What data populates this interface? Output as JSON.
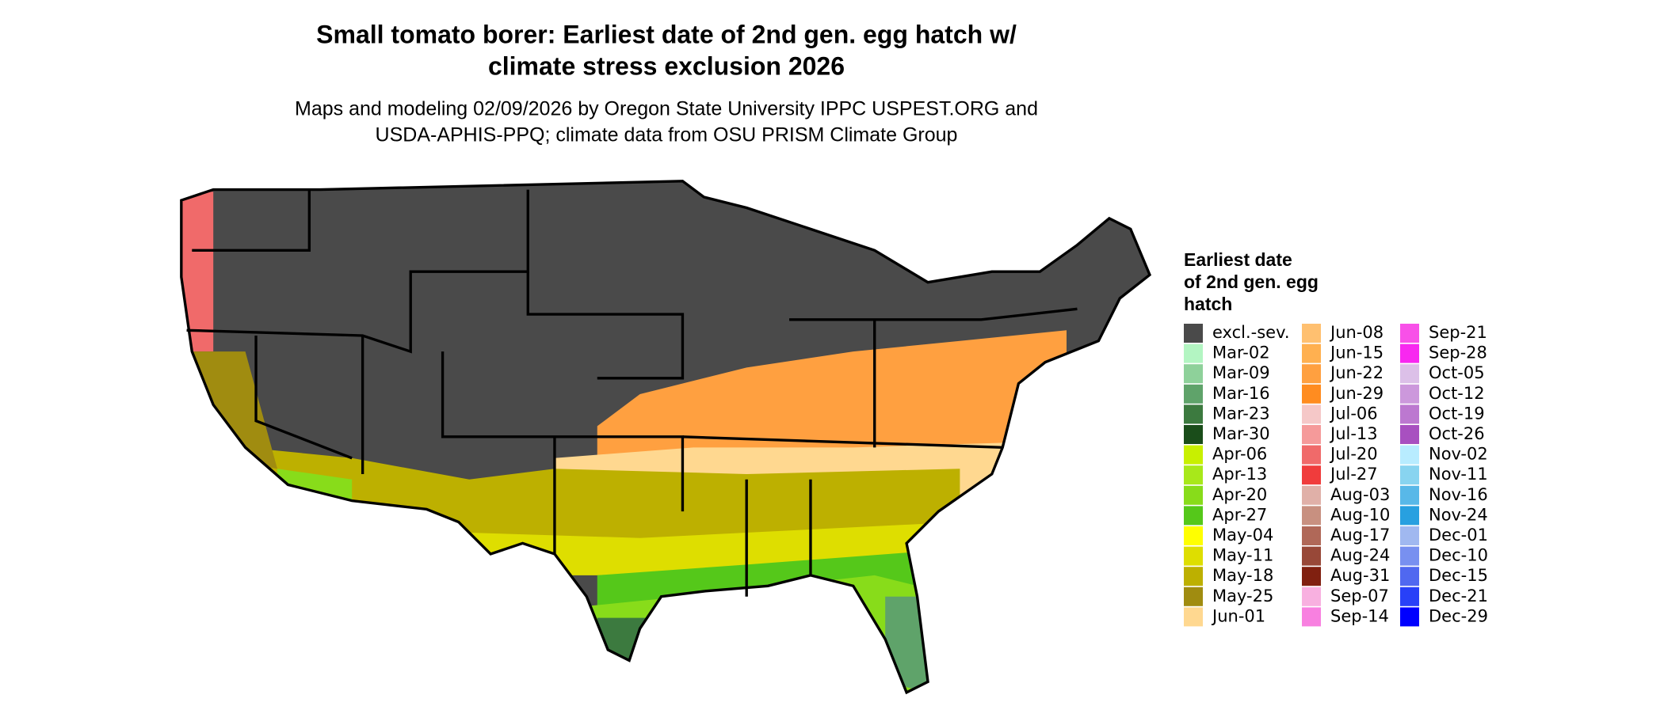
{
  "title": [
    "Small tomato borer: Earliest date of 2nd gen. egg hatch w/",
    "climate stress exclusion 2026"
  ],
  "subtitle": [
    "Maps and modeling 02/09/2026 by Oregon State University IPPC USPEST.ORG and",
    "USDA-APHIS-PPQ; climate data from OSU PRISM Climate Group"
  ],
  "legend": {
    "title": [
      "Earliest date",
      "of 2nd gen. egg",
      "hatch"
    ],
    "rows_per_column": 15,
    "entries": [
      {
        "label": "excl.-sev.",
        "color": "#4a4a4a"
      },
      {
        "label": "Mar-02",
        "color": "#b3f5c2"
      },
      {
        "label": "Mar-09",
        "color": "#8ed19a"
      },
      {
        "label": "Mar-16",
        "color": "#5fa36a"
      },
      {
        "label": "Mar-23",
        "color": "#3c7a3f"
      },
      {
        "label": "Mar-30",
        "color": "#1a4d1a"
      },
      {
        "label": "Apr-06",
        "color": "#c8f000"
      },
      {
        "label": "Apr-13",
        "color": "#a8e81a"
      },
      {
        "label": "Apr-20",
        "color": "#88dc1a"
      },
      {
        "label": "Apr-27",
        "color": "#55c81a"
      },
      {
        "label": "May-04",
        "color": "#ffff00"
      },
      {
        "label": "May-11",
        "color": "#dede00"
      },
      {
        "label": "May-18",
        "color": "#bdb000"
      },
      {
        "label": "May-25",
        "color": "#a08c10"
      },
      {
        "label": "Jun-01",
        "color": "#ffd890"
      },
      {
        "label": "Jun-08",
        "color": "#ffc070"
      },
      {
        "label": "Jun-15",
        "color": "#ffb050"
      },
      {
        "label": "Jun-22",
        "color": "#ffa040"
      },
      {
        "label": "Jun-29",
        "color": "#ff8c20"
      },
      {
        "label": "Jul-06",
        "color": "#f5c8c8"
      },
      {
        "label": "Jul-13",
        "color": "#f59a9a"
      },
      {
        "label": "Jul-20",
        "color": "#f06a6a"
      },
      {
        "label": "Jul-27",
        "color": "#f03c3c"
      },
      {
        "label": "Aug-03",
        "color": "#e0b0a8"
      },
      {
        "label": "Aug-10",
        "color": "#c89080"
      },
      {
        "label": "Aug-17",
        "color": "#b06858"
      },
      {
        "label": "Aug-24",
        "color": "#984838"
      },
      {
        "label": "Aug-31",
        "color": "#802010"
      },
      {
        "label": "Sep-07",
        "color": "#f8b0e0"
      },
      {
        "label": "Sep-14",
        "color": "#f880e0"
      },
      {
        "label": "Sep-21",
        "color": "#f850e8"
      },
      {
        "label": "Sep-28",
        "color": "#f828f0"
      },
      {
        "label": "Oct-05",
        "color": "#dcc0e8"
      },
      {
        "label": "Oct-12",
        "color": "#cc98dc"
      },
      {
        "label": "Oct-19",
        "color": "#bc78d0"
      },
      {
        "label": "Oct-26",
        "color": "#a850c0"
      },
      {
        "label": "Nov-02",
        "color": "#b8ecff"
      },
      {
        "label": "Nov-11",
        "color": "#88d4f0"
      },
      {
        "label": "Nov-16",
        "color": "#58b8e8"
      },
      {
        "label": "Nov-24",
        "color": "#28a0e0"
      },
      {
        "label": "Dec-01",
        "color": "#a0b8f0"
      },
      {
        "label": "Dec-10",
        "color": "#7890f0"
      },
      {
        "label": "Dec-15",
        "color": "#5068f0"
      },
      {
        "label": "Dec-21",
        "color": "#2840f8"
      },
      {
        "label": "Dec-29",
        "color": "#0000ff"
      }
    ]
  }
}
